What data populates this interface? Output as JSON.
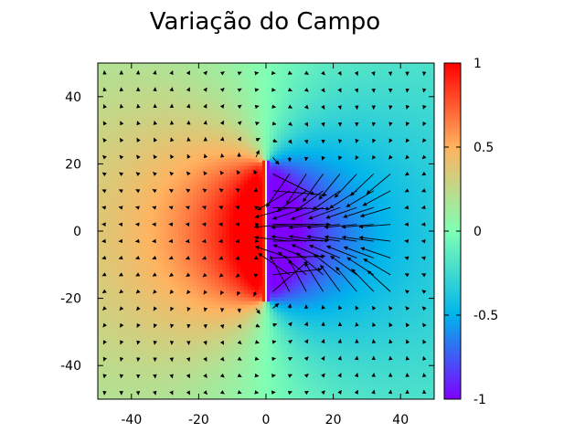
{
  "chart_data": {
    "type": "heatmap",
    "title": "Variação do Campo",
    "xlabel": "",
    "ylabel": "",
    "xlim": [
      -50,
      50
    ],
    "ylim": [
      -50,
      50
    ],
    "x_ticks": [
      -40,
      -20,
      0,
      20,
      40
    ],
    "y_ticks": [
      -40,
      -20,
      0,
      20,
      40
    ],
    "x_tick_labels": [
      "-40",
      "-20",
      "0",
      "20",
      "40"
    ],
    "y_tick_labels": [
      "-40",
      "-20",
      "0",
      "20",
      "40"
    ],
    "grid": false,
    "colorbar": {
      "range": [
        -1,
        1
      ],
      "ticks": [
        -1,
        -0.5,
        0,
        0.5,
        1
      ],
      "tick_labels": [
        "-1",
        "-0.5",
        "0",
        "0.5",
        "1"
      ],
      "colormap": "rainbow (purple -1 → cyan → green 0 → orange → red 1)"
    },
    "plates": [
      {
        "x": -0.5,
        "y_range": [
          -21,
          21
        ],
        "polarity": "positive",
        "color": "#ff2000"
      },
      {
        "x": 0.5,
        "y_range": [
          -21,
          21
        ],
        "polarity": "negative",
        "color": "#7b10ff"
      }
    ],
    "field_description": "electric dipole layer: positive potential on left, negative on right, vector arrows of the field overlaid",
    "colors": {
      "positive": "#ff1a00",
      "negative": "#7f00ff",
      "neutral": "#80f0a8",
      "gap_line": "#f5f0a0",
      "arrows": "#000000"
    }
  }
}
